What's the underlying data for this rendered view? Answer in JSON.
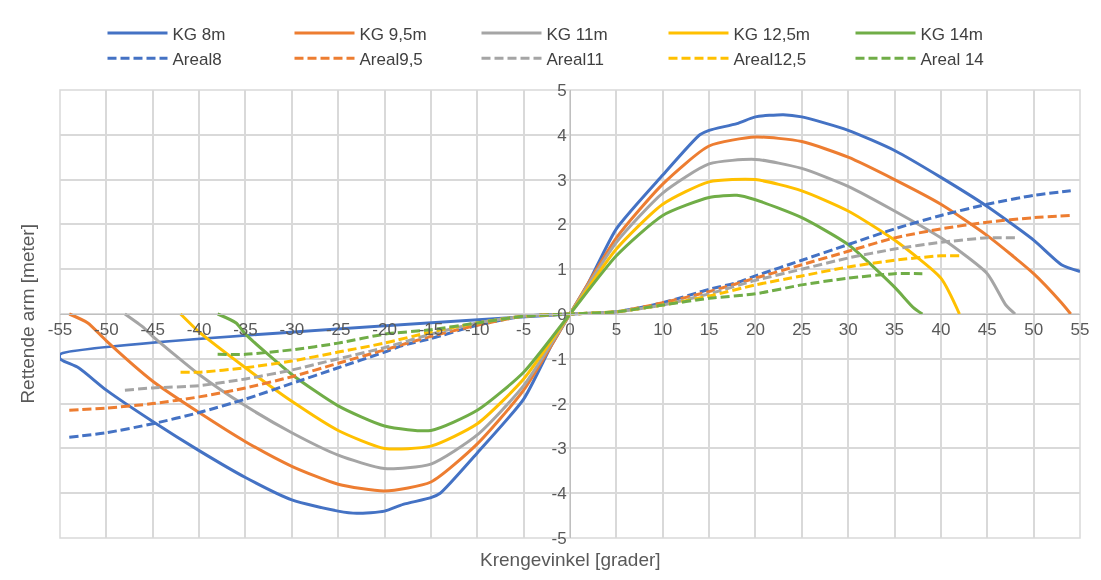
{
  "chart_data": {
    "type": "line",
    "xlabel": "Krengevinkel [grader]",
    "ylabel": "Rettende arm [meter]",
    "xlim": [
      -55,
      55
    ],
    "xticks": [
      -55,
      -50,
      -45,
      -40,
      -35,
      -30,
      -25,
      -20,
      -15,
      -10,
      -5,
      0,
      5,
      10,
      15,
      20,
      25,
      30,
      35,
      40,
      45,
      50,
      55
    ],
    "ylim": [
      -5,
      5
    ],
    "yticks": [
      -5,
      -4,
      -3,
      -2,
      -1,
      0,
      1,
      2,
      3,
      4,
      5
    ],
    "grid": true,
    "legend": "top",
    "marker": "none",
    "series": [
      {
        "name": "KG 8m",
        "color": "#4472c4",
        "line_style": "solid",
        "x": [
          0,
          -55,
          -55,
          -53,
          -50,
          -45,
          -40,
          -35,
          -30,
          -25,
          -23,
          -20,
          -18,
          -15,
          -14,
          -10,
          -5,
          -2,
          0,
          2,
          5,
          10,
          14,
          15,
          18,
          20,
          23,
          25,
          30,
          35,
          40,
          45,
          50,
          53,
          55
        ],
        "values": [
          0,
          -0.9,
          -1.0,
          -1.2,
          -1.7,
          -2.4,
          -3.05,
          -3.65,
          -4.15,
          -4.4,
          -4.45,
          -4.4,
          -4.25,
          -4.1,
          -4.0,
          -3.1,
          -1.9,
          -0.7,
          0,
          0.7,
          1.9,
          3.1,
          4.0,
          4.1,
          4.25,
          4.4,
          4.45,
          4.4,
          4.1,
          3.65,
          3.05,
          2.4,
          1.65,
          1.1,
          0.95
        ]
      },
      {
        "name": "KG 9,5m",
        "color": "#ed7d31",
        "line_style": "solid",
        "x": [
          -54,
          -52,
          -50,
          -45,
          -40,
          -35,
          -30,
          -25,
          -20,
          -15,
          -10,
          -5,
          0,
          5,
          10,
          15,
          20,
          25,
          30,
          35,
          40,
          45,
          50,
          53,
          54
        ],
        "values": [
          0,
          -0.2,
          -0.6,
          -1.5,
          -2.2,
          -2.85,
          -3.4,
          -3.8,
          -3.95,
          -3.75,
          -2.9,
          -1.7,
          0,
          1.7,
          2.9,
          3.75,
          3.95,
          3.85,
          3.5,
          3.0,
          2.45,
          1.75,
          0.9,
          0.25,
          0
        ]
      },
      {
        "name": "KG 11m",
        "color": "#a5a5a5",
        "line_style": "solid",
        "x": [
          -48,
          -46,
          -45,
          -40,
          -35,
          -30,
          -25,
          -20,
          -15,
          -10,
          -5,
          0,
          5,
          10,
          15,
          20,
          25,
          30,
          35,
          40,
          45,
          47,
          48
        ],
        "values": [
          0,
          -0.3,
          -0.5,
          -1.35,
          -2.05,
          -2.65,
          -3.15,
          -3.45,
          -3.35,
          -2.7,
          -1.6,
          0,
          1.6,
          2.7,
          3.35,
          3.45,
          3.25,
          2.85,
          2.3,
          1.7,
          0.9,
          0.2,
          0
        ]
      },
      {
        "name": "KG 12,5m",
        "color": "#ffc000",
        "line_style": "solid",
        "x": [
          -42,
          -40,
          -35,
          -30,
          -25,
          -20,
          -15,
          -10,
          -5,
          0,
          5,
          10,
          15,
          20,
          25,
          30,
          35,
          40,
          42
        ],
        "values": [
          0,
          -0.4,
          -1.2,
          -1.95,
          -2.6,
          -3.0,
          -2.95,
          -2.45,
          -1.45,
          0,
          1.45,
          2.45,
          2.95,
          3.0,
          2.75,
          2.3,
          1.65,
          0.8,
          0
        ]
      },
      {
        "name": "KG 14m",
        "color": "#70ad47",
        "line_style": "solid",
        "x": [
          -38,
          -36,
          -35,
          -30,
          -25,
          -20,
          -15,
          -10,
          -5,
          0,
          5,
          10,
          15,
          18,
          20,
          25,
          30,
          35,
          37,
          38
        ],
        "values": [
          0,
          -0.2,
          -0.45,
          -1.35,
          -2.05,
          -2.5,
          -2.6,
          -2.15,
          -1.3,
          0,
          1.3,
          2.2,
          2.6,
          2.65,
          2.55,
          2.15,
          1.55,
          0.6,
          0.15,
          0
        ]
      },
      {
        "name": "Areal8",
        "color": "#4472c4",
        "line_style": "dashed",
        "x": [
          -54,
          -50,
          -45,
          -40,
          -35,
          -30,
          -25,
          -20,
          -18,
          -15,
          -10,
          -5,
          0,
          5,
          10,
          15,
          18,
          20,
          25,
          30,
          35,
          40,
          45,
          50,
          54
        ],
        "values": [
          -2.75,
          -2.65,
          -2.45,
          -2.2,
          -1.9,
          -1.55,
          -1.2,
          -0.85,
          -0.7,
          -0.55,
          -0.25,
          -0.05,
          0,
          0.05,
          0.25,
          0.55,
          0.7,
          0.85,
          1.2,
          1.55,
          1.9,
          2.2,
          2.45,
          2.65,
          2.75
        ]
      },
      {
        "name": "Areal9,5",
        "color": "#ed7d31",
        "line_style": "dashed",
        "x": [
          -54,
          -50,
          -45,
          -40,
          -35,
          -30,
          -25,
          -20,
          -15,
          -10,
          -5,
          0,
          5,
          10,
          15,
          20,
          25,
          30,
          35,
          40,
          45,
          50,
          54
        ],
        "values": [
          -2.15,
          -2.1,
          -2.0,
          -1.85,
          -1.65,
          -1.4,
          -1.1,
          -0.8,
          -0.5,
          -0.25,
          -0.05,
          0,
          0.05,
          0.25,
          0.5,
          0.8,
          1.1,
          1.4,
          1.7,
          1.9,
          2.05,
          2.15,
          2.2
        ]
      },
      {
        "name": "Areal11",
        "color": "#a5a5a5",
        "line_style": "dashed",
        "x": [
          -48,
          -45,
          -40,
          -35,
          -30,
          -25,
          -20,
          -15,
          -10,
          -5,
          0,
          5,
          10,
          15,
          20,
          25,
          30,
          35,
          40,
          45,
          48
        ],
        "values": [
          -1.7,
          -1.65,
          -1.6,
          -1.45,
          -1.25,
          -1.0,
          -0.75,
          -0.45,
          -0.2,
          -0.05,
          0,
          0.05,
          0.2,
          0.45,
          0.75,
          1.0,
          1.25,
          1.45,
          1.6,
          1.7,
          1.7
        ]
      },
      {
        "name": "Areal12,5",
        "color": "#ffc000",
        "line_style": "dashed",
        "x": [
          -42,
          -40,
          -35,
          -30,
          -25,
          -20,
          -15,
          -10,
          -5,
          0,
          5,
          10,
          15,
          20,
          25,
          30,
          35,
          40,
          42
        ],
        "values": [
          -1.3,
          -1.3,
          -1.2,
          -1.05,
          -0.85,
          -0.65,
          -0.4,
          -0.2,
          -0.05,
          0,
          0.05,
          0.2,
          0.4,
          0.65,
          0.85,
          1.05,
          1.2,
          1.3,
          1.3
        ]
      },
      {
        "name": "Areal 14",
        "color": "#70ad47",
        "line_style": "dashed",
        "x": [
          -38,
          -35,
          -30,
          -25,
          -20,
          -15,
          -10,
          -5,
          0,
          5,
          10,
          15,
          20,
          25,
          30,
          35,
          38
        ],
        "values": [
          -0.9,
          -0.9,
          -0.8,
          -0.65,
          -0.45,
          -0.35,
          -0.2,
          -0.05,
          0,
          0.05,
          0.2,
          0.35,
          0.45,
          0.65,
          0.8,
          0.9,
          0.9
        ]
      }
    ]
  }
}
